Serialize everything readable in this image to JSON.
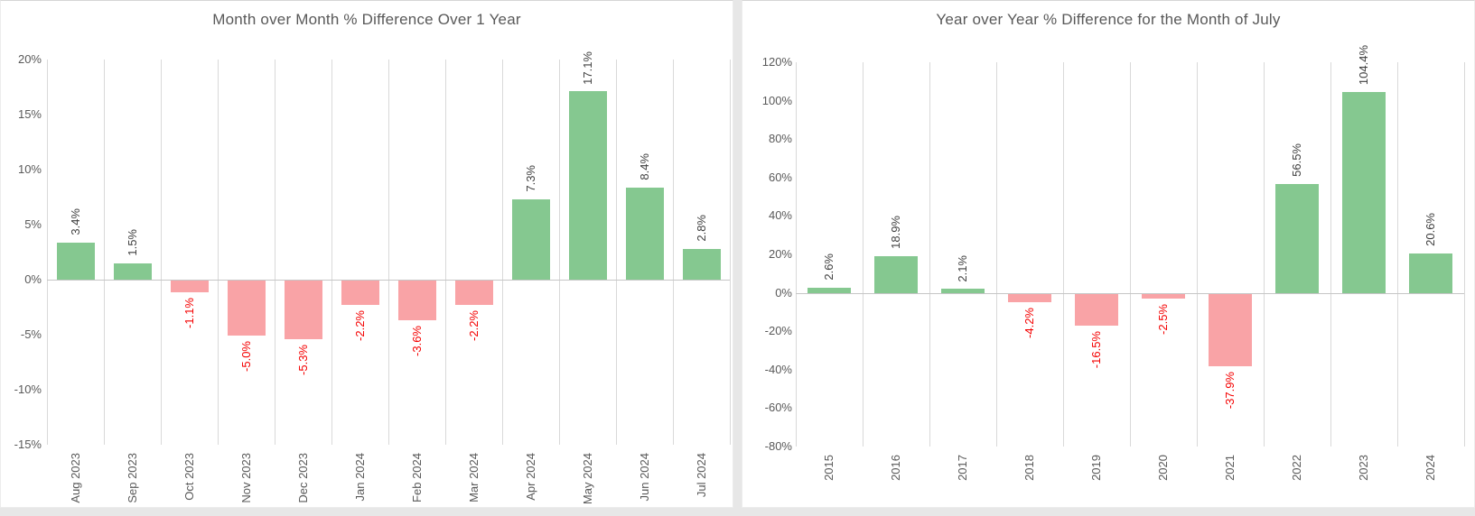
{
  "colors": {
    "bar_positive": "#85c890",
    "bar_negative": "#f9a3a6",
    "label_positive": "#404040",
    "label_negative": "#f40000",
    "axis_text": "#595959",
    "title_text": "#595959",
    "gridline": "#d9d9d9",
    "zero_line": "#c6c6c6",
    "page_background": "#e7e7e7",
    "card_background": "#ffffff"
  },
  "chart_data": [
    {
      "type": "bar",
      "title": "Month over Month % Difference Over 1 Year",
      "categories": [
        "Aug 2023",
        "Sep 2023",
        "Oct 2023",
        "Nov 2023",
        "Dec 2023",
        "Jan 2024",
        "Feb 2024",
        "Mar 2024",
        "Apr 2024",
        "May 2024",
        "Jun 2024",
        "Jul 2024"
      ],
      "values": [
        3.4,
        1.5,
        -1.1,
        -5.0,
        -5.3,
        -2.2,
        -3.6,
        -2.2,
        7.3,
        17.1,
        8.4,
        2.8
      ],
      "value_labels": [
        "3.4%",
        "1.5%",
        "-1.1%",
        "-5.0%",
        "-5.3%",
        "-2.2%",
        "-3.6%",
        "-2.2%",
        "7.3%",
        "17.1%",
        "8.4%",
        "2.8%"
      ],
      "xlabel": "",
      "ylabel": "",
      "ylim": [
        -15,
        20
      ],
      "ytick_step": 5,
      "ytick_labels": [
        "20%",
        "15%",
        "10%",
        "5%",
        "0%",
        "-5%",
        "-10%",
        "-15%"
      ],
      "gridlines": "vertical-only",
      "legend": "none",
      "value_label_rotation": "90deg-bottom-to-top",
      "category_label_rotation": "90deg-bottom-to-top"
    },
    {
      "type": "bar",
      "title": "Year over Year % Difference for the Month of July",
      "categories": [
        "2015",
        "2016",
        "2017",
        "2018",
        "2019",
        "2020",
        "2021",
        "2022",
        "2023",
        "2024"
      ],
      "values": [
        2.6,
        18.9,
        2.1,
        -4.2,
        -16.5,
        -2.5,
        -37.9,
        56.5,
        104.4,
        20.6
      ],
      "value_labels": [
        "2.6%",
        "18.9%",
        "2.1%",
        "-4.2%",
        "-16.5%",
        "-2.5%",
        "-37.9%",
        "56.5%",
        "104.4%",
        "20.6%"
      ],
      "xlabel": "",
      "ylabel": "",
      "ylim": [
        -80,
        120
      ],
      "ytick_step": 20,
      "ytick_labels": [
        "120%",
        "100%",
        "80%",
        "60%",
        "40%",
        "20%",
        "0%",
        "-20%",
        "-40%",
        "-60%",
        "-80%"
      ],
      "gridlines": "vertical-only",
      "legend": "none",
      "value_label_rotation": "90deg-bottom-to-top",
      "category_label_rotation": "90deg-bottom-to-top"
    }
  ]
}
